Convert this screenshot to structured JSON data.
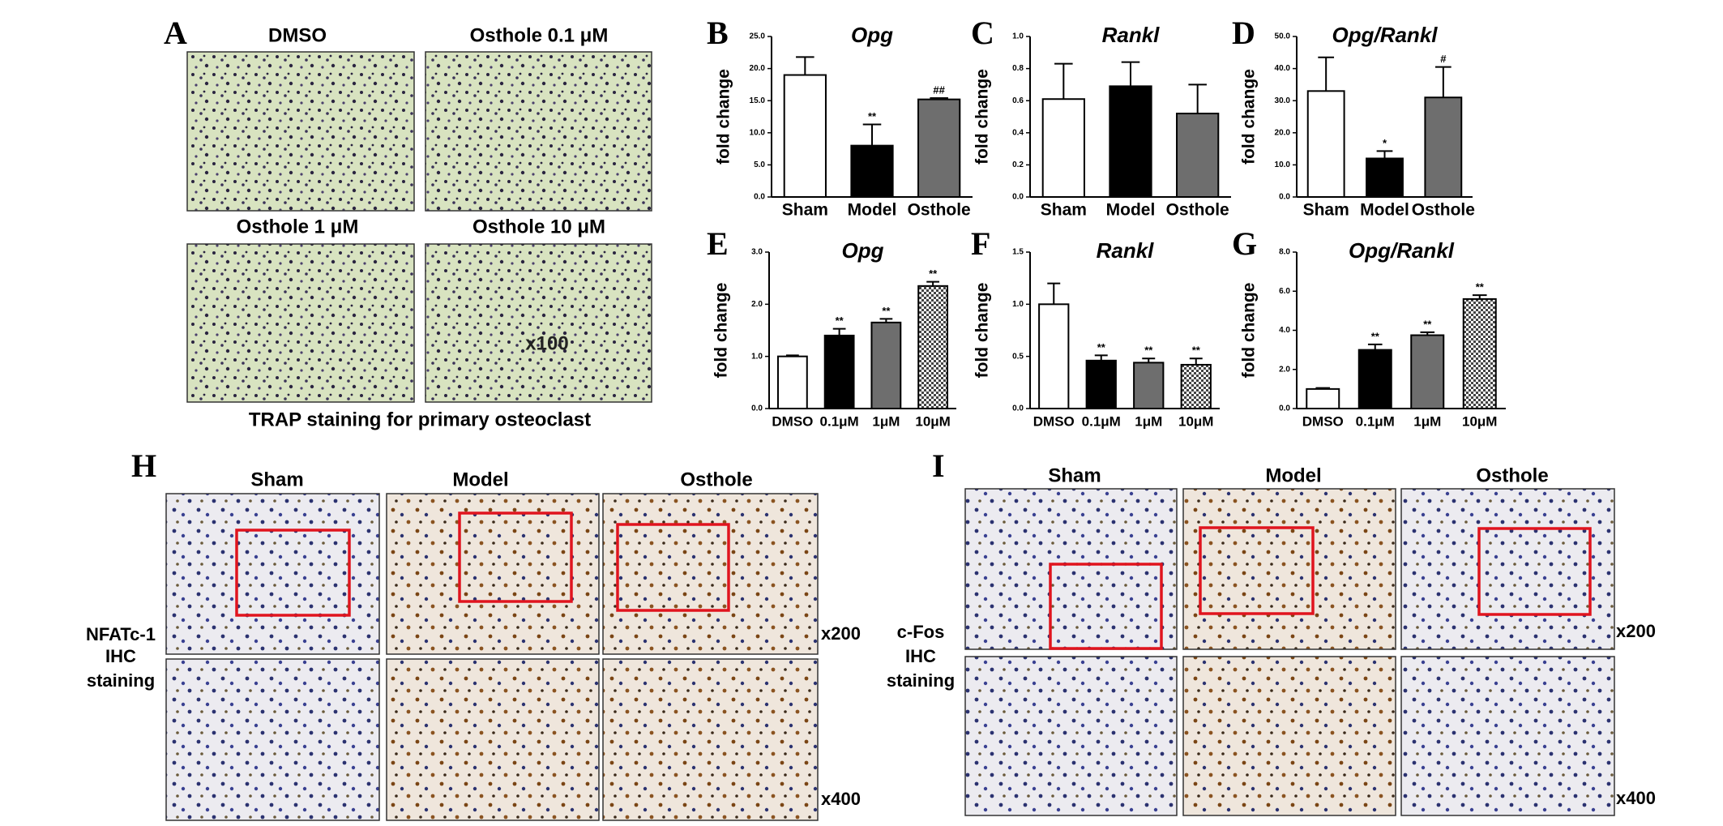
{
  "panel_labels": [
    "A",
    "B",
    "C",
    "D",
    "E",
    "F",
    "G",
    "H",
    "I"
  ],
  "panel_a": {
    "captions": [
      "DMSO",
      "Osthole  0.1 μM",
      "Osthole  1 μM",
      "Osthole  10 μM"
    ],
    "magnification": "x100",
    "footer": "TRAP staining for primary osteoclast"
  },
  "panel_h": {
    "columns": [
      "Sham",
      "Model",
      "Osthole"
    ],
    "row_label": [
      "NFATc-1",
      "IHC",
      "staining"
    ],
    "magnifications": [
      "x200",
      "x400"
    ]
  },
  "panel_i": {
    "columns": [
      "Sham",
      "Model",
      "Osthole"
    ],
    "row_label": [
      "c-Fos",
      "IHC",
      "staining"
    ],
    "magnifications": [
      "x200",
      "x400"
    ]
  },
  "chart_data": [
    {
      "type": "bar",
      "title": "Opg",
      "y_label": "fold change",
      "categories": [
        "Sham",
        "Model",
        "Osthole"
      ],
      "values": [
        19,
        8,
        15.2
      ],
      "errors": [
        2.8,
        3.3,
        0.2
      ],
      "annotations": [
        null,
        "**",
        "##"
      ],
      "colors": [
        "#ffffff",
        "#000000",
        "#6e6e6e"
      ],
      "ylim": [
        0,
        25
      ],
      "yticks": [
        {
          "value": 0,
          "label": "0.0"
        },
        {
          "value": 5,
          "label": "5.0"
        },
        {
          "value": 10,
          "label": "10.0"
        },
        {
          "value": 15,
          "label": "15.0"
        },
        {
          "value": 20,
          "label": "20.0"
        },
        {
          "value": 25,
          "label": "25.0"
        }
      ]
    },
    {
      "type": "bar",
      "title": "Rankl",
      "y_label": "fold change",
      "categories": [
        "Sham",
        "Model",
        "Osthole"
      ],
      "values": [
        0.61,
        0.69,
        0.52
      ],
      "errors": [
        0.22,
        0.15,
        0.18
      ],
      "colors": [
        "#ffffff",
        "#000000",
        "#6e6e6e"
      ],
      "ylim": [
        0,
        1
      ],
      "yticks": [
        {
          "value": 0,
          "label": "0.0"
        },
        0.2,
        0.4,
        0.6,
        0.8,
        {
          "value": 1,
          "label": "1.0"
        }
      ]
    },
    {
      "type": "bar",
      "title": "Opg/Rankl",
      "y_label": "fold change",
      "categories": [
        "Sham",
        "Model",
        "Osthole"
      ],
      "values": [
        33,
        12,
        31
      ],
      "errors": [
        10.5,
        2.3,
        9.5
      ],
      "annotations": [
        null,
        "*",
        "#"
      ],
      "colors": [
        "#ffffff",
        "#000000",
        "#6e6e6e"
      ],
      "ylim": [
        0,
        50
      ],
      "yticks": [
        {
          "value": 0,
          "label": "0.0"
        },
        {
          "value": 10,
          "label": "10.0"
        },
        {
          "value": 20,
          "label": "20.0"
        },
        {
          "value": 30,
          "label": "30.0"
        },
        {
          "value": 40,
          "label": "40.0"
        },
        {
          "value": 50,
          "label": "50.0"
        }
      ]
    },
    {
      "type": "bar",
      "title": "Opg",
      "y_label": "fold change",
      "categories": [
        "DMSO",
        "0.1μM",
        "1μM",
        "10μM"
      ],
      "values": [
        1.0,
        1.4,
        1.65,
        2.35
      ],
      "errors": [
        0.02,
        0.13,
        0.07,
        0.08
      ],
      "annotations": [
        null,
        "**",
        "**",
        "**"
      ],
      "colors": [
        "#ffffff",
        "#000000",
        "#6e6e6e",
        "#bdbdbd"
      ],
      "bar_patterns": [
        null,
        null,
        null,
        "checker"
      ],
      "ylim": [
        0,
        3
      ],
      "yticks": [
        {
          "value": 0,
          "label": "0.0"
        },
        {
          "value": 1,
          "label": "1.0"
        },
        {
          "value": 2,
          "label": "2.0"
        },
        {
          "value": 3,
          "label": "3.0"
        }
      ]
    },
    {
      "type": "bar",
      "title": "Rankl",
      "y_label": "fold change",
      "categories": [
        "DMSO",
        "0.1μM",
        "1μM",
        "10μM"
      ],
      "values": [
        1.0,
        0.46,
        0.44,
        0.42
      ],
      "errors": [
        0.2,
        0.05,
        0.04,
        0.06
      ],
      "annotations": [
        null,
        "**",
        "**",
        "**"
      ],
      "colors": [
        "#ffffff",
        "#000000",
        "#6e6e6e",
        "#bdbdbd"
      ],
      "bar_patterns": [
        null,
        null,
        null,
        "checker"
      ],
      "ylim": [
        0,
        1.5
      ],
      "yticks": [
        {
          "value": 0,
          "label": "0.0"
        },
        0.5,
        {
          "value": 1,
          "label": "1.0"
        },
        1.5
      ]
    },
    {
      "type": "bar",
      "title": "Opg/Rankl",
      "y_label": "fold change",
      "categories": [
        "DMSO",
        "0.1μM",
        "1μM",
        "10μM"
      ],
      "values": [
        1.0,
        3.0,
        3.75,
        5.6
      ],
      "errors": [
        0.05,
        0.28,
        0.15,
        0.2
      ],
      "annotations": [
        null,
        "**",
        "**",
        "**"
      ],
      "colors": [
        "#ffffff",
        "#000000",
        "#6e6e6e",
        "#bdbdbd"
      ],
      "bar_patterns": [
        null,
        null,
        null,
        "checker"
      ],
      "ylim": [
        0,
        8
      ],
      "yticks": [
        {
          "value": 0,
          "label": "0.0"
        },
        {
          "value": 2,
          "label": "2.0"
        },
        {
          "value": 4,
          "label": "4.0"
        },
        {
          "value": 6,
          "label": "6.0"
        },
        {
          "value": 8,
          "label": "8.0"
        }
      ]
    }
  ]
}
